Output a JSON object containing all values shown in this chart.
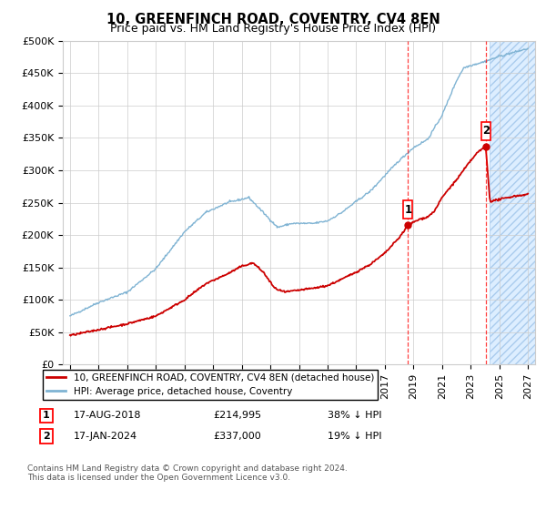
{
  "title": "10, GREENFINCH ROAD, COVENTRY, CV4 8EN",
  "subtitle": "Price paid vs. HM Land Registry's House Price Index (HPI)",
  "ylim": [
    0,
    500000
  ],
  "yticks": [
    0,
    50000,
    100000,
    150000,
    200000,
    250000,
    300000,
    350000,
    400000,
    450000,
    500000
  ],
  "ytick_labels": [
    "£0",
    "£50K",
    "£100K",
    "£150K",
    "£200K",
    "£250K",
    "£300K",
    "£350K",
    "£400K",
    "£450K",
    "£500K"
  ],
  "xlim_start": 1994.5,
  "xlim_end": 2027.5,
  "sale1_year": 2018.62,
  "sale1_price": 214995,
  "sale2_year": 2024.05,
  "sale2_price": 337000,
  "future_start": 2024.3,
  "legend_line1": "10, GREENFINCH ROAD, COVENTRY, CV4 8EN (detached house)",
  "legend_line2": "HPI: Average price, detached house, Coventry",
  "footnote": "Contains HM Land Registry data © Crown copyright and database right 2024.\nThis data is licensed under the Open Government Licence v3.0.",
  "red_color": "#cc0000",
  "blue_color": "#7fb3d3",
  "title_fontsize": 10.5,
  "subtitle_fontsize": 9,
  "tick_fontsize": 8,
  "legend_fontsize": 7.5
}
